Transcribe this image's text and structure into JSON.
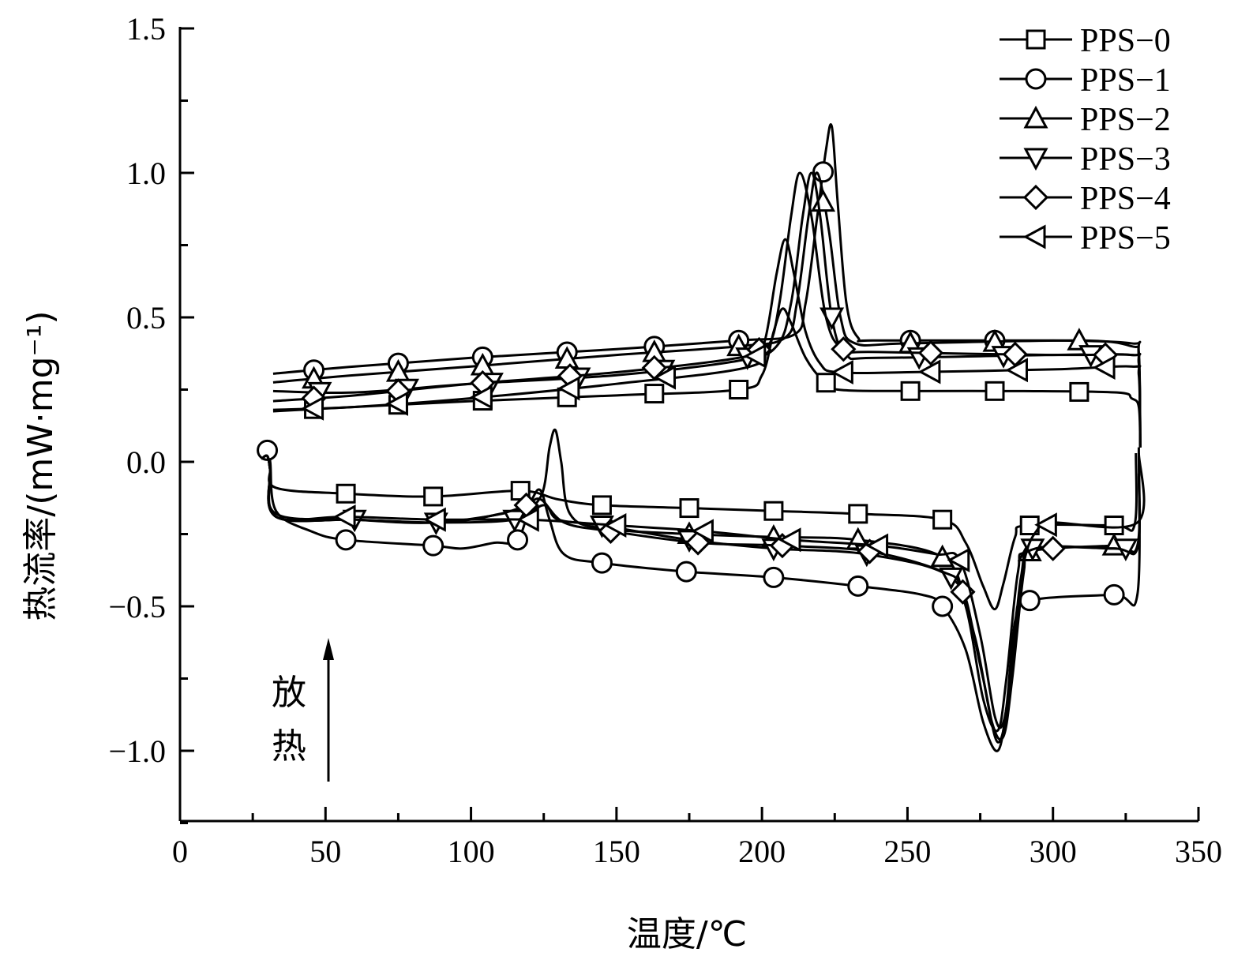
{
  "chart_data": {
    "type": "line",
    "title": "",
    "xlabel": "温度/℃",
    "ylabel": "热流率/(mW·mg⁻¹)",
    "xlim": [
      0,
      350
    ],
    "ylim": [
      -1.24,
      1.5
    ],
    "xticks": [
      "0",
      "50",
      "100",
      "150",
      "200",
      "250",
      "300",
      "350"
    ],
    "yticks": [
      "1.5",
      "1.0",
      "0.5",
      "0.0",
      "−0.5",
      "−1.0"
    ],
    "ytick_values": [
      1.5,
      1.0,
      0.5,
      0.0,
      -0.5,
      -1.0
    ],
    "xtick_values": [
      0,
      50,
      100,
      150,
      200,
      250,
      300,
      350
    ],
    "grid": false,
    "legend_position": "top-right",
    "annotation": {
      "text_1": "放",
      "text_2": "热",
      "arrow": "up"
    },
    "series": [
      {
        "name": "PPS−0",
        "marker": "square",
        "cooling": [
          [
            330,
            0.05
          ],
          [
            329.5,
            0.19
          ],
          [
            327,
            0.22
          ],
          [
            322,
            0.24
          ],
          [
            290,
            0.245
          ],
          [
            250,
            0.245
          ],
          [
            226,
            0.25
          ],
          [
            221,
            0.28
          ],
          [
            215,
            0.36
          ],
          [
            210,
            0.48
          ],
          [
            207,
            0.53
          ],
          [
            204,
            0.45
          ],
          [
            200,
            0.3
          ],
          [
            192,
            0.25
          ],
          [
            150,
            0.23
          ],
          [
            100,
            0.21
          ],
          [
            60,
            0.19
          ],
          [
            32,
            0.175
          ]
        ],
        "heating": [
          [
            28,
            0.02
          ],
          [
            30,
            0.03
          ],
          [
            31,
            -0.02
          ],
          [
            33,
            -0.09
          ],
          [
            57,
            -0.11
          ],
          [
            87,
            -0.12
          ],
          [
            117,
            -0.1
          ],
          [
            130,
            -0.13
          ],
          [
            145,
            -0.15
          ],
          [
            175,
            -0.16
          ],
          [
            204,
            -0.17
          ],
          [
            233,
            -0.18
          ],
          [
            262,
            -0.2
          ],
          [
            270,
            -0.28
          ],
          [
            276,
            -0.43
          ],
          [
            280,
            -0.51
          ],
          [
            283,
            -0.42
          ],
          [
            287,
            -0.26
          ],
          [
            291,
            -0.22
          ],
          [
            321,
            -0.22
          ],
          [
            328,
            -0.22
          ],
          [
            328.5,
            0.03
          ]
        ],
        "markers_cooling": [
          46,
          75,
          104,
          133,
          163,
          192,
          222,
          251,
          280,
          309
        ],
        "markers_heating": [
          57,
          87,
          117,
          145,
          175,
          204,
          233,
          262,
          292,
          321
        ]
      },
      {
        "name": "PPS−1",
        "marker": "circle",
        "cooling": [
          [
            330,
            0.05
          ],
          [
            329.5,
            0.38
          ],
          [
            327,
            0.41
          ],
          [
            300,
            0.42
          ],
          [
            240,
            0.42
          ],
          [
            233,
            0.43
          ],
          [
            229,
            0.55
          ],
          [
            226,
            0.9
          ],
          [
            224,
            1.16
          ],
          [
            222,
            1.08
          ],
          [
            219,
            0.85
          ],
          [
            215,
            0.55
          ],
          [
            211,
            0.44
          ],
          [
            192,
            0.42
          ],
          [
            150,
            0.39
          ],
          [
            100,
            0.36
          ],
          [
            60,
            0.33
          ],
          [
            32,
            0.305
          ]
        ],
        "heating": [
          [
            28,
            0.02
          ],
          [
            30,
            0.04
          ],
          [
            31,
            0.0
          ],
          [
            33,
            -0.17
          ],
          [
            45,
            -0.24
          ],
          [
            57,
            -0.27
          ],
          [
            87,
            -0.29
          ],
          [
            97,
            -0.3
          ],
          [
            108,
            -0.28
          ],
          [
            116,
            -0.27
          ],
          [
            121,
            -0.13
          ],
          [
            124,
            -0.1
          ],
          [
            127,
            -0.2
          ],
          [
            132,
            -0.32
          ],
          [
            145,
            -0.35
          ],
          [
            174,
            -0.38
          ],
          [
            204,
            -0.4
          ],
          [
            233,
            -0.43
          ],
          [
            255,
            -0.46
          ],
          [
            262,
            -0.5
          ],
          [
            270,
            -0.65
          ],
          [
            276,
            -0.9
          ],
          [
            281,
            -1.0
          ],
          [
            284,
            -0.85
          ],
          [
            287,
            -0.55
          ],
          [
            292,
            -0.48
          ],
          [
            321,
            -0.46
          ],
          [
            329,
            -0.46
          ],
          [
            329.5,
            0.05
          ]
        ],
        "markers_cooling": [
          46,
          75,
          104,
          133,
          163,
          192,
          221,
          251,
          280
        ],
        "markers_heating": [
          30,
          57,
          87,
          116,
          145,
          174,
          204,
          233,
          262,
          292,
          321
        ]
      },
      {
        "name": "PPS−2",
        "marker": "triangle-up",
        "cooling": [
          [
            330,
            0.05
          ],
          [
            329.5,
            0.36
          ],
          [
            327,
            0.4
          ],
          [
            309,
            0.42
          ],
          [
            250,
            0.41
          ],
          [
            232,
            0.41
          ],
          [
            227,
            0.5
          ],
          [
            223,
            0.8
          ],
          [
            219,
            1.0
          ],
          [
            216,
            0.85
          ],
          [
            212,
            0.55
          ],
          [
            208,
            0.43
          ],
          [
            192,
            0.4
          ],
          [
            150,
            0.37
          ],
          [
            100,
            0.33
          ],
          [
            60,
            0.3
          ],
          [
            32,
            0.275
          ]
        ],
        "heating": [
          [
            28,
            0.01
          ],
          [
            30,
            0.02
          ],
          [
            31,
            -0.03
          ],
          [
            33,
            -0.18
          ],
          [
            60,
            -0.2
          ],
          [
            88,
            -0.21
          ],
          [
            115,
            -0.17
          ],
          [
            124,
            -0.12
          ],
          [
            127,
            0.05
          ],
          [
            129,
            0.11
          ],
          [
            131,
            0.0
          ],
          [
            134,
            -0.18
          ],
          [
            145,
            -0.23
          ],
          [
            175,
            -0.25
          ],
          [
            204,
            -0.26
          ],
          [
            233,
            -0.27
          ],
          [
            262,
            -0.33
          ],
          [
            270,
            -0.5
          ],
          [
            276,
            -0.82
          ],
          [
            281,
            -0.93
          ],
          [
            284,
            -0.75
          ],
          [
            288,
            -0.38
          ],
          [
            292,
            -0.31
          ],
          [
            321,
            -0.29
          ],
          [
            329,
            -0.29
          ],
          [
            329.5,
            0.02
          ]
        ],
        "markers_cooling": [
          46,
          75,
          104,
          133,
          163,
          192,
          221,
          251,
          280,
          309
        ],
        "markers_heating": [
          175,
          204,
          233,
          262,
          292,
          321
        ]
      },
      {
        "name": "PPS−3",
        "marker": "triangle-down",
        "cooling": [
          [
            330,
            0.05
          ],
          [
            329.5,
            0.34
          ],
          [
            327,
            0.37
          ],
          [
            300,
            0.37
          ],
          [
            240,
            0.36
          ],
          [
            229,
            0.37
          ],
          [
            224,
            0.5
          ],
          [
            220,
            0.85
          ],
          [
            217,
            1.0
          ],
          [
            214,
            0.85
          ],
          [
            210,
            0.55
          ],
          [
            205,
            0.4
          ],
          [
            192,
            0.35
          ],
          [
            150,
            0.3
          ],
          [
            100,
            0.27
          ],
          [
            60,
            0.24
          ],
          [
            32,
            0.245
          ]
        ],
        "heating": [
          [
            28,
            0.01
          ],
          [
            30,
            0.02
          ],
          [
            31,
            -0.03
          ],
          [
            33,
            -0.19
          ],
          [
            60,
            -0.2
          ],
          [
            88,
            -0.21
          ],
          [
            115,
            -0.2
          ],
          [
            125,
            -0.15
          ],
          [
            130,
            -0.2
          ],
          [
            145,
            -0.22
          ],
          [
            175,
            -0.27
          ],
          [
            204,
            -0.3
          ],
          [
            236,
            -0.32
          ],
          [
            265,
            -0.4
          ],
          [
            273,
            -0.6
          ],
          [
            279,
            -0.9
          ],
          [
            283,
            -0.95
          ],
          [
            286,
            -0.75
          ],
          [
            290,
            -0.38
          ],
          [
            293,
            -0.3
          ],
          [
            321,
            -0.3
          ],
          [
            329,
            -0.3
          ],
          [
            329.5,
            -0.04
          ]
        ],
        "markers_cooling": [
          48,
          78,
          107,
          137,
          166,
          195,
          224,
          254,
          283,
          313
        ],
        "markers_heating": [
          60,
          88,
          115,
          145,
          175,
          204,
          236,
          265,
          293,
          325
        ]
      },
      {
        "name": "PPS−4",
        "marker": "diamond",
        "cooling": [
          [
            330,
            0.05
          ],
          [
            329.5,
            0.34
          ],
          [
            327,
            0.37
          ],
          [
            300,
            0.37
          ],
          [
            240,
            0.38
          ],
          [
            228,
            0.39
          ],
          [
            222,
            0.5
          ],
          [
            217,
            0.85
          ],
          [
            213,
            1.0
          ],
          [
            210,
            0.85
          ],
          [
            206,
            0.55
          ],
          [
            202,
            0.4
          ],
          [
            192,
            0.36
          ],
          [
            150,
            0.31
          ],
          [
            100,
            0.27
          ],
          [
            60,
            0.23
          ],
          [
            32,
            0.21
          ]
        ],
        "heating": [
          [
            28,
            0.01
          ],
          [
            30,
            0.02
          ],
          [
            31,
            -0.03
          ],
          [
            33,
            -0.19
          ],
          [
            60,
            -0.2
          ],
          [
            90,
            -0.21
          ],
          [
            110,
            -0.18
          ],
          [
            119,
            -0.15
          ],
          [
            124,
            -0.13
          ],
          [
            132,
            -0.21
          ],
          [
            148,
            -0.24
          ],
          [
            178,
            -0.28
          ],
          [
            207,
            -0.29
          ],
          [
            237,
            -0.31
          ],
          [
            262,
            -0.38
          ],
          [
            269,
            -0.45
          ],
          [
            276,
            -0.75
          ],
          [
            281,
            -0.97
          ],
          [
            285,
            -0.8
          ],
          [
            289,
            -0.4
          ],
          [
            294,
            -0.3
          ],
          [
            321,
            -0.3
          ],
          [
            329,
            -0.3
          ],
          [
            329.5,
            -0.05
          ]
        ],
        "markers_cooling": [
          46,
          75,
          104,
          134,
          163,
          199,
          228,
          258,
          287,
          318
        ],
        "markers_heating": [
          119,
          148,
          178,
          207,
          237,
          269,
          300
        ]
      },
      {
        "name": "PPS−5",
        "marker": "triangle-left",
        "cooling": [
          [
            330,
            0.05
          ],
          [
            329.5,
            0.3
          ],
          [
            327,
            0.33
          ],
          [
            300,
            0.32
          ],
          [
            250,
            0.31
          ],
          [
            226,
            0.31
          ],
          [
            220,
            0.34
          ],
          [
            215,
            0.45
          ],
          [
            211,
            0.65
          ],
          [
            208,
            0.77
          ],
          [
            205,
            0.65
          ],
          [
            201,
            0.42
          ],
          [
            196,
            0.33
          ],
          [
            150,
            0.27
          ],
          [
            100,
            0.22
          ],
          [
            60,
            0.19
          ],
          [
            32,
            0.18
          ]
        ],
        "heating": [
          [
            28,
            0.01
          ],
          [
            30,
            0.02
          ],
          [
            31,
            -0.03
          ],
          [
            33,
            -0.19
          ],
          [
            57,
            -0.19
          ],
          [
            88,
            -0.2
          ],
          [
            120,
            -0.2
          ],
          [
            150,
            -0.22
          ],
          [
            180,
            -0.24
          ],
          [
            210,
            -0.27
          ],
          [
            240,
            -0.29
          ],
          [
            260,
            -0.32
          ],
          [
            268,
            -0.34
          ],
          [
            275,
            -0.6
          ],
          [
            280,
            -0.88
          ],
          [
            283,
            -0.9
          ],
          [
            286,
            -0.7
          ],
          [
            290,
            -0.35
          ],
          [
            295,
            -0.23
          ],
          [
            300,
            -0.21
          ],
          [
            329,
            -0.21
          ],
          [
            329.5,
            0.03
          ]
        ],
        "markers_cooling": [
          46,
          75,
          104,
          134,
          167,
          198,
          228,
          258,
          288,
          318
        ],
        "markers_heating": [
          57,
          88,
          120,
          150,
          180,
          210,
          240,
          268,
          298
        ]
      }
    ]
  }
}
